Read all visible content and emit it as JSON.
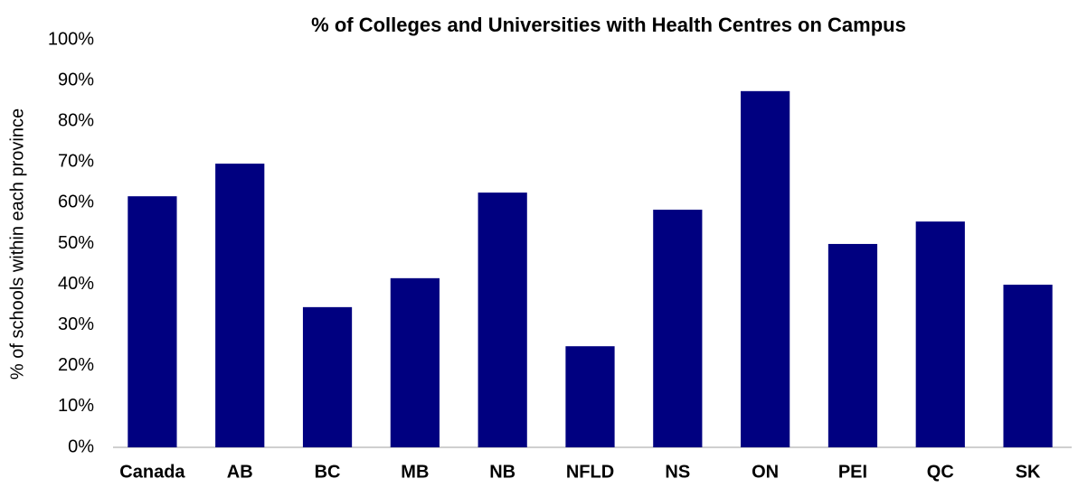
{
  "chart_data": {
    "type": "bar",
    "title": "% of Colleges and Universities with Health Centres on Campus",
    "y_axis_label": "% of schools within each province",
    "categories": [
      "Canada",
      "AB",
      "BC",
      "MB",
      "NB",
      "NFLD",
      "NS",
      "ON",
      "PEI",
      "QC",
      "SK"
    ],
    "values": [
      61.6,
      69.6,
      34.4,
      41.5,
      62.5,
      24.8,
      58.3,
      87.4,
      49.9,
      55.4,
      39.9
    ],
    "color": "#000080",
    "ylim": [
      0,
      100
    ],
    "yticks": [
      {
        "value": 0,
        "label": "0%"
      },
      {
        "value": 10,
        "label": "10%"
      },
      {
        "value": 20,
        "label": "20%"
      },
      {
        "value": 30,
        "label": "30%"
      },
      {
        "value": 40,
        "label": "40%"
      },
      {
        "value": 50,
        "label": "50%"
      },
      {
        "value": 60,
        "label": "60%"
      },
      {
        "value": 70,
        "label": "70%"
      },
      {
        "value": 80,
        "label": "80%"
      },
      {
        "value": 90,
        "label": "90%"
      },
      {
        "value": 100,
        "label": "100%"
      }
    ],
    "grid": false
  }
}
